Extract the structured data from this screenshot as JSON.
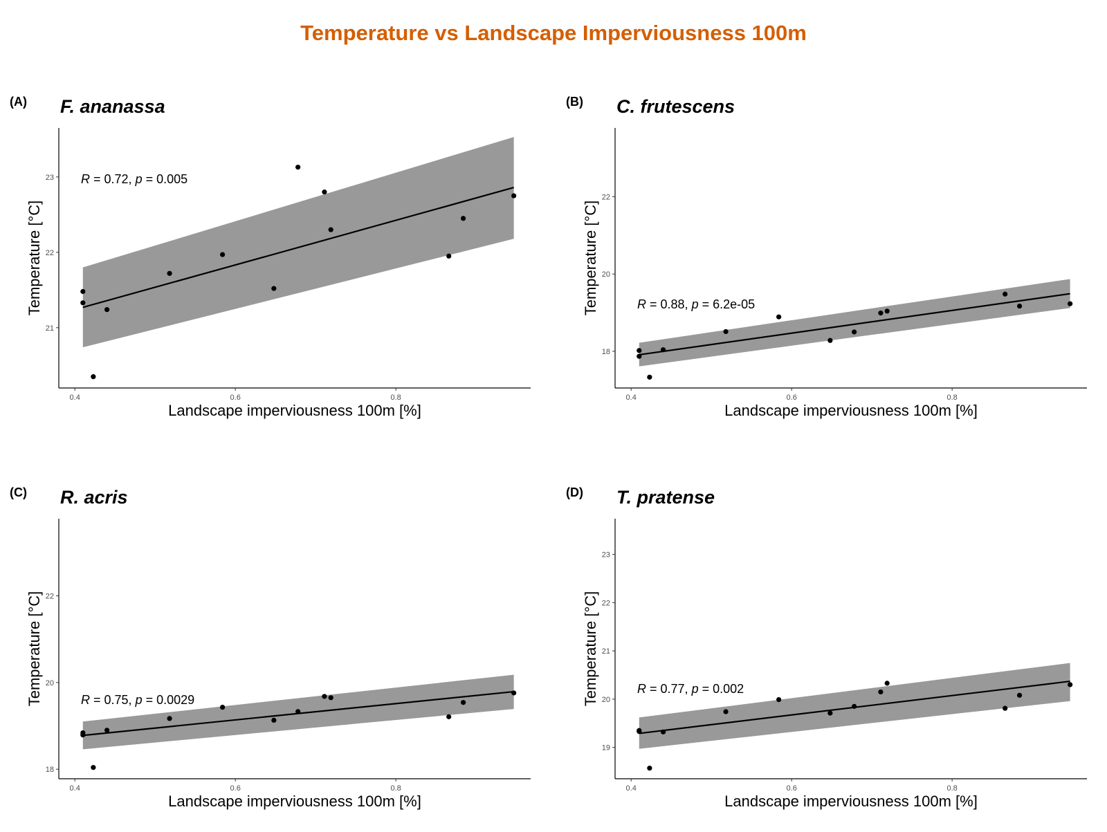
{
  "title": "Temperature vs Landscape Imperviousness 100m",
  "colors": {
    "title": "#D55E00",
    "band": "#999999",
    "line": "#000000",
    "points": "#000000"
  },
  "chart_data": [
    {
      "type": "scatter",
      "panel": "(A)",
      "species": "F. ananassa",
      "xlabel": "Landscape imperviousness 100m [%]",
      "ylabel": "Temperature [°C]",
      "stat": {
        "R": "0.72",
        "p": "0.005"
      },
      "xlim": [
        0.38,
        0.968
      ],
      "ylim": [
        20.2,
        23.65
      ],
      "xticks": [
        0.4,
        0.6,
        0.8
      ],
      "yticks": [
        21,
        22,
        23
      ],
      "points": [
        [
          0.41,
          21.48
        ],
        [
          0.41,
          21.33
        ],
        [
          0.44,
          21.24
        ],
        [
          0.423,
          20.35
        ],
        [
          0.518,
          21.72
        ],
        [
          0.584,
          21.97
        ],
        [
          0.648,
          21.52
        ],
        [
          0.678,
          23.13
        ],
        [
          0.711,
          22.8
        ],
        [
          0.719,
          22.3
        ],
        [
          0.866,
          21.95
        ],
        [
          0.884,
          22.45
        ],
        [
          0.947,
          22.75
        ]
      ],
      "fit": {
        "x": [
          0.41,
          0.947
        ],
        "y": [
          21.27,
          22.86
        ]
      },
      "band": {
        "lower": [
          20.74,
          22.18
        ],
        "upper": [
          21.8,
          23.53
        ]
      }
    },
    {
      "type": "scatter",
      "panel": "(B)",
      "species": "C. frutescens",
      "xlabel": "Landscape imperviousness 100m [%]",
      "ylabel": "Temperature [°C]",
      "stat": {
        "R": "0.88",
        "p": "6.2e-05"
      },
      "xlim": [
        0.38,
        0.968
      ],
      "ylim": [
        17.05,
        23.78
      ],
      "xticks": [
        0.4,
        0.6,
        0.8
      ],
      "yticks": [
        18,
        20,
        22
      ],
      "points": [
        [
          0.41,
          18.02
        ],
        [
          0.41,
          17.87
        ],
        [
          0.44,
          18.04
        ],
        [
          0.423,
          17.33
        ],
        [
          0.518,
          18.51
        ],
        [
          0.584,
          18.89
        ],
        [
          0.648,
          18.28
        ],
        [
          0.678,
          18.5
        ],
        [
          0.711,
          18.99
        ],
        [
          0.719,
          19.04
        ],
        [
          0.866,
          19.48
        ],
        [
          0.884,
          19.17
        ],
        [
          0.947,
          19.23
        ]
      ],
      "fit": {
        "x": [
          0.41,
          0.947
        ],
        "y": [
          17.91,
          19.49
        ]
      },
      "band": {
        "lower": [
          17.61,
          19.12
        ],
        "upper": [
          18.22,
          19.87
        ]
      }
    },
    {
      "type": "scatter",
      "panel": "(C)",
      "species": "R. acris",
      "xlabel": "Landscape imperviousness 100m [%]",
      "ylabel": "Temperature [°C]",
      "stat": {
        "R": "0.75",
        "p": "0.0029"
      },
      "xlim": [
        0.38,
        0.968
      ],
      "ylim": [
        17.78,
        23.78
      ],
      "xticks": [
        0.4,
        0.6,
        0.8
      ],
      "yticks": [
        18,
        20,
        22
      ],
      "points": [
        [
          0.41,
          18.84
        ],
        [
          0.41,
          18.79
        ],
        [
          0.44,
          18.9
        ],
        [
          0.423,
          18.04
        ],
        [
          0.518,
          19.17
        ],
        [
          0.584,
          19.43
        ],
        [
          0.648,
          19.13
        ],
        [
          0.678,
          19.33
        ],
        [
          0.711,
          19.68
        ],
        [
          0.719,
          19.65
        ],
        [
          0.866,
          19.21
        ],
        [
          0.884,
          19.54
        ],
        [
          0.947,
          19.76
        ]
      ],
      "fit": {
        "x": [
          0.41,
          0.947
        ],
        "y": [
          18.78,
          19.79
        ]
      },
      "band": {
        "lower": [
          18.46,
          19.39
        ],
        "upper": [
          19.1,
          20.18
        ]
      }
    },
    {
      "type": "scatter",
      "panel": "(D)",
      "species": "T. pratense",
      "xlabel": "Landscape imperviousness 100m [%]",
      "ylabel": "Temperature [°C]",
      "stat": {
        "R": "0.77",
        "p": "0.002"
      },
      "xlim": [
        0.38,
        0.968
      ],
      "ylim": [
        18.35,
        23.74
      ],
      "xticks": [
        0.4,
        0.6,
        0.8
      ],
      "yticks": [
        19,
        20,
        21,
        22,
        23
      ],
      "points": [
        [
          0.41,
          19.35
        ],
        [
          0.41,
          19.33
        ],
        [
          0.44,
          19.32
        ],
        [
          0.423,
          18.57
        ],
        [
          0.518,
          19.74
        ],
        [
          0.584,
          19.99
        ],
        [
          0.648,
          19.71
        ],
        [
          0.678,
          19.85
        ],
        [
          0.711,
          20.15
        ],
        [
          0.719,
          20.33
        ],
        [
          0.866,
          19.81
        ],
        [
          0.884,
          20.08
        ],
        [
          0.947,
          20.3
        ]
      ],
      "fit": {
        "x": [
          0.41,
          0.947
        ],
        "y": [
          19.29,
          20.37
        ]
      },
      "band": {
        "lower": [
          18.97,
          19.96
        ],
        "upper": [
          19.62,
          20.75
        ]
      }
    }
  ]
}
